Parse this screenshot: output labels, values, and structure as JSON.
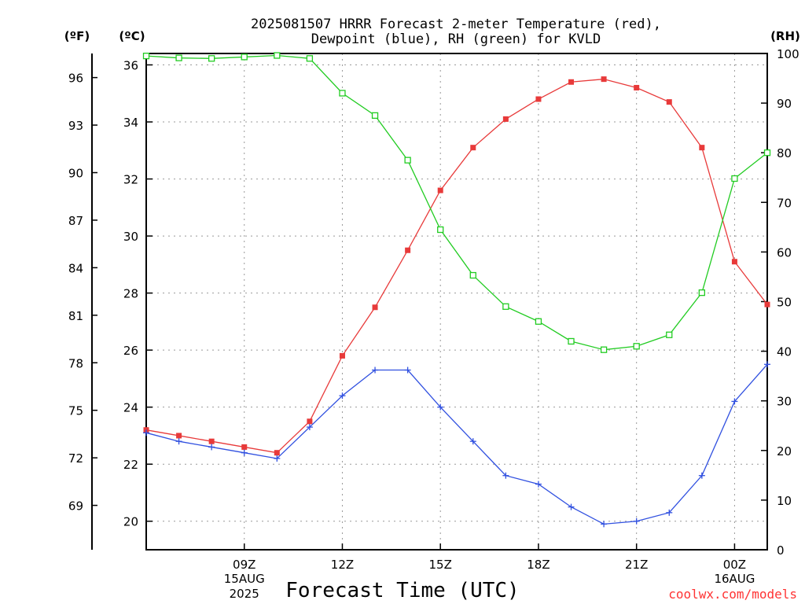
{
  "title": {
    "line1": "2025081507 HRRR Forecast 2-meter Temperature (red),",
    "line2": "Dewpoint (blue), RH (green) for KVLD"
  },
  "axes": {
    "fahrenheit_unit": "(ºF)",
    "celsius_unit": "(ºC)",
    "rh_unit": "(RH)",
    "xlabel": "Forecast Time (UTC)"
  },
  "credit": "coolwx.com/models",
  "colors": {
    "temperature": "#e83a3a",
    "dewpoint": "#3050e0",
    "rh": "#22cc22",
    "credit": "#ff3333"
  },
  "chart_data": {
    "type": "line",
    "x": [
      "06Z",
      "07Z",
      "08Z",
      "09Z",
      "10Z",
      "11Z",
      "12Z",
      "13Z",
      "14Z",
      "15Z",
      "16Z",
      "17Z",
      "18Z",
      "19Z",
      "20Z",
      "21Z",
      "22Z",
      "23Z",
      "00Z",
      "01Z"
    ],
    "x_range_hours": [
      6.0,
      25.0
    ],
    "x_ticks": [
      {
        "hour": 9,
        "label": "09Z",
        "sub1": "15AUG",
        "sub2": "2025"
      },
      {
        "hour": 12,
        "label": "12Z",
        "sub1": "",
        "sub2": ""
      },
      {
        "hour": 15,
        "label": "15Z",
        "sub1": "",
        "sub2": ""
      },
      {
        "hour": 18,
        "label": "18Z",
        "sub1": "",
        "sub2": ""
      },
      {
        "hour": 21,
        "label": "21Z",
        "sub1": "",
        "sub2": ""
      },
      {
        "hour": 24,
        "label": "00Z",
        "sub1": "16AUG",
        "sub2": ""
      }
    ],
    "y_celsius": {
      "range": [
        19.0,
        36.4
      ],
      "ticks": [
        20,
        22,
        24,
        26,
        28,
        30,
        32,
        34,
        36
      ]
    },
    "y_fahrenheit": {
      "ticks": [
        69,
        72,
        75,
        78,
        81,
        84,
        87,
        90,
        93,
        96
      ]
    },
    "y_rh": {
      "range": [
        0,
        100
      ],
      "ticks": [
        0,
        10,
        20,
        30,
        40,
        50,
        60,
        70,
        80,
        90,
        100
      ]
    },
    "grid": true,
    "series": [
      {
        "name": "Temperature",
        "axis": "celsius",
        "values": [
          23.2,
          23.0,
          22.8,
          22.6,
          22.4,
          23.5,
          25.8,
          27.5,
          29.5,
          31.6,
          33.1,
          34.1,
          34.8,
          35.4,
          35.5,
          35.2,
          34.7,
          33.1,
          29.1,
          27.6
        ]
      },
      {
        "name": "Dewpoint",
        "axis": "celsius",
        "values": [
          23.1,
          22.8,
          22.6,
          22.4,
          22.2,
          23.3,
          24.4,
          25.3,
          25.3,
          24.0,
          22.8,
          21.6,
          21.3,
          20.5,
          19.9,
          20.0,
          20.3,
          21.6,
          24.2,
          25.5
        ]
      },
      {
        "name": "RH",
        "axis": "rh",
        "values": [
          99.5,
          99.1,
          99.0,
          99.3,
          99.6,
          99.0,
          92.0,
          87.5,
          78.5,
          64.5,
          55.3,
          49.0,
          46.0,
          42.0,
          40.3,
          41.0,
          43.3,
          51.8,
          74.8,
          80.0
        ]
      }
    ]
  }
}
